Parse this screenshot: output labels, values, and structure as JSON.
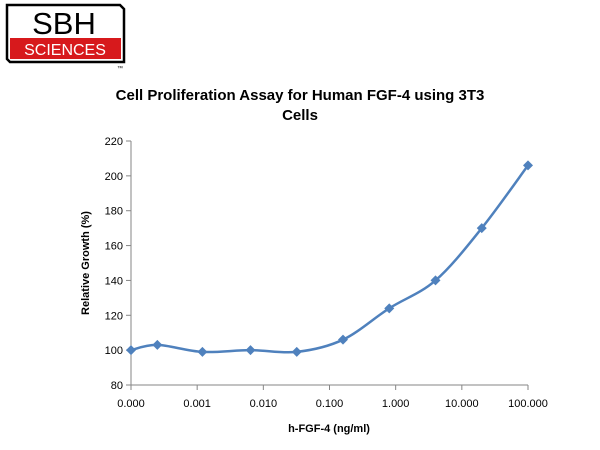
{
  "logo": {
    "line1": "SBH",
    "line2": "SCIENCES",
    "mark": "™",
    "colors": {
      "red": "#d7191c",
      "white": "#ffffff",
      "black": "#000000"
    }
  },
  "chart_data": {
    "type": "line",
    "title": "Cell Proliferation Assay for Human FGF-4 using 3T3 Cells",
    "xlabel": "h-FGF-4 (ng/ml)",
    "ylabel": "Relative Growth (%)",
    "x_scale": "log",
    "x_tick_labels": [
      "0.000",
      "0.001",
      "0.010",
      "0.100",
      "1.000",
      "10.000",
      "100.000"
    ],
    "y_ticks": [
      80,
      100,
      120,
      140,
      160,
      180,
      200,
      220
    ],
    "ylim": [
      80,
      220
    ],
    "grid": false,
    "legend": "none",
    "series": [
      {
        "color": "#4f81bd",
        "marker": "diamond",
        "x": [
          0.0001,
          0.00025,
          0.0012,
          0.0064,
          0.032,
          0.16,
          0.8,
          4,
          20,
          100
        ],
        "y": [
          100,
          103,
          99,
          100,
          99,
          106,
          124,
          140,
          170,
          206
        ]
      }
    ]
  }
}
